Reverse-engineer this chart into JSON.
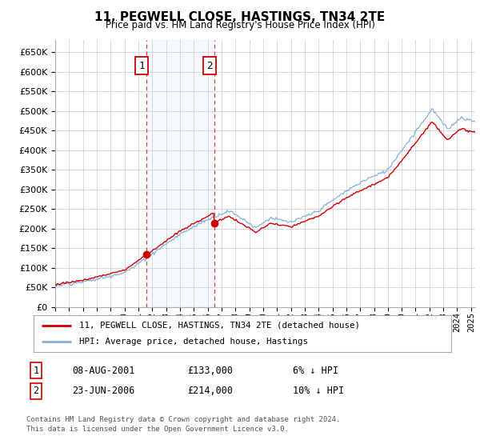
{
  "title": "11, PEGWELL CLOSE, HASTINGS, TN34 2TE",
  "subtitle": "Price paid vs. HM Land Registry's House Price Index (HPI)",
  "ylim": [
    0,
    680000
  ],
  "yticks": [
    0,
    50000,
    100000,
    150000,
    200000,
    250000,
    300000,
    350000,
    400000,
    450000,
    500000,
    550000,
    600000,
    650000
  ],
  "background_color": "#ffffff",
  "plot_bg_color": "#ffffff",
  "grid_color": "#cccccc",
  "hpi_color": "#88aedd",
  "price_color": "#cc0000",
  "sale1_date": 2001.58,
  "sale1_price": 133000,
  "sale1_label": "1",
  "sale2_date": 2006.47,
  "sale2_price": 214000,
  "sale2_label": "2",
  "legend_line1": "11, PEGWELL CLOSE, HASTINGS, TN34 2TE (detached house)",
  "legend_line2": "HPI: Average price, detached house, Hastings",
  "table_row1": [
    "1",
    "08-AUG-2001",
    "£133,000",
    "6% ↓ HPI"
  ],
  "table_row2": [
    "2",
    "23-JUN-2006",
    "£214,000",
    "10% ↓ HPI"
  ],
  "footnote": "Contains HM Land Registry data © Crown copyright and database right 2024.\nThis data is licensed under the Open Government Licence v3.0.",
  "shade1_start": 2001.58,
  "shade1_end": 2006.47,
  "vline1": 2001.58,
  "vline2": 2006.47,
  "xmin": 1995,
  "xmax": 2025.3
}
